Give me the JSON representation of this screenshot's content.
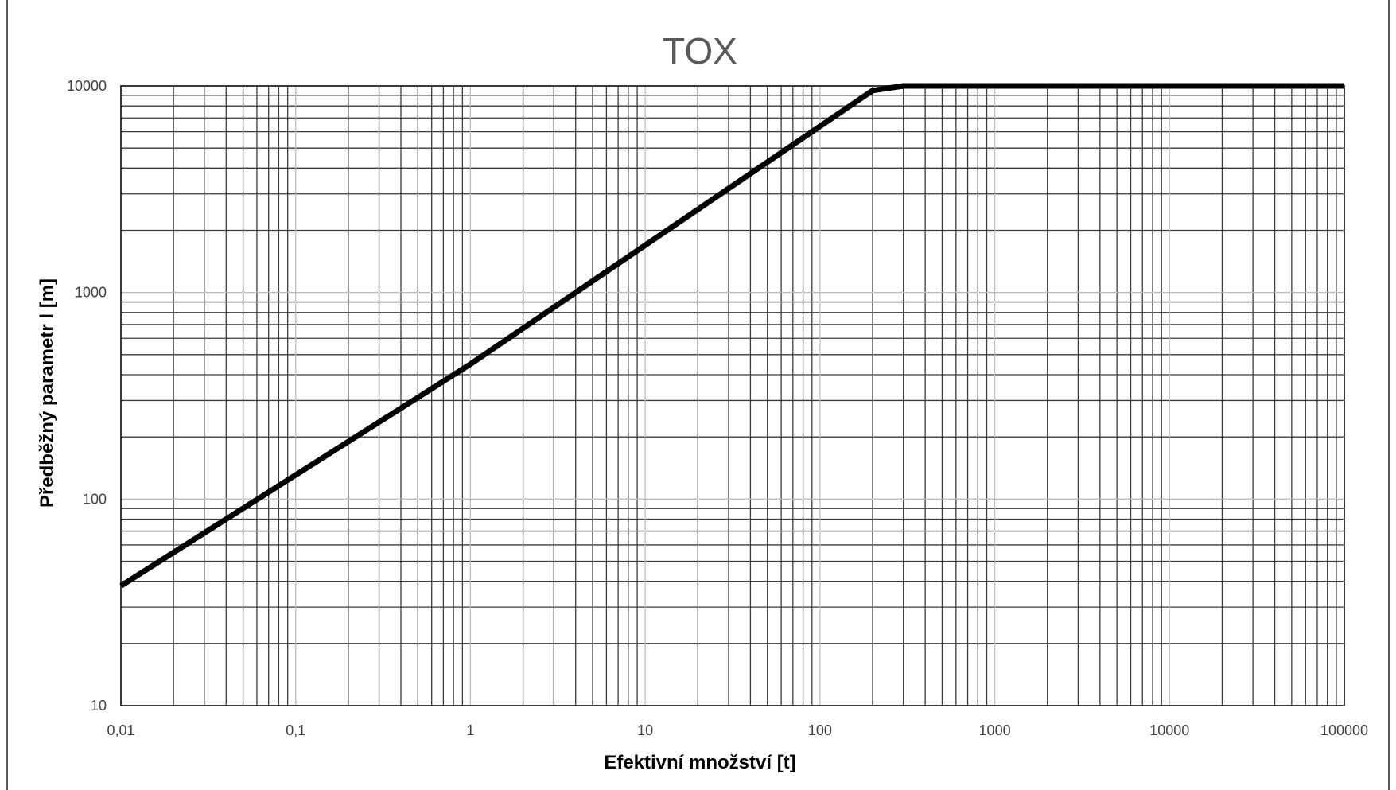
{
  "chart_data": {
    "type": "line",
    "title": "TOX",
    "xlabel": "Efektivní množství [t]",
    "ylabel": "Předběžný parametr  l [m]",
    "x_scale": "log",
    "y_scale": "log",
    "xlim": [
      0.01,
      100000
    ],
    "ylim": [
      10,
      10000
    ],
    "x_tick_labels": [
      "0,01",
      "0,1",
      "1",
      "10",
      "100",
      "1000",
      "10000",
      "100000"
    ],
    "y_tick_labels": [
      "10",
      "100",
      "1000",
      "10000"
    ],
    "grid": true,
    "legend": "none",
    "series": [
      {
        "color": "#000000",
        "x": [
          0.01,
          1,
          200,
          300,
          100000
        ],
        "y": [
          38,
          450,
          9500,
          10000,
          10000
        ]
      }
    ]
  }
}
